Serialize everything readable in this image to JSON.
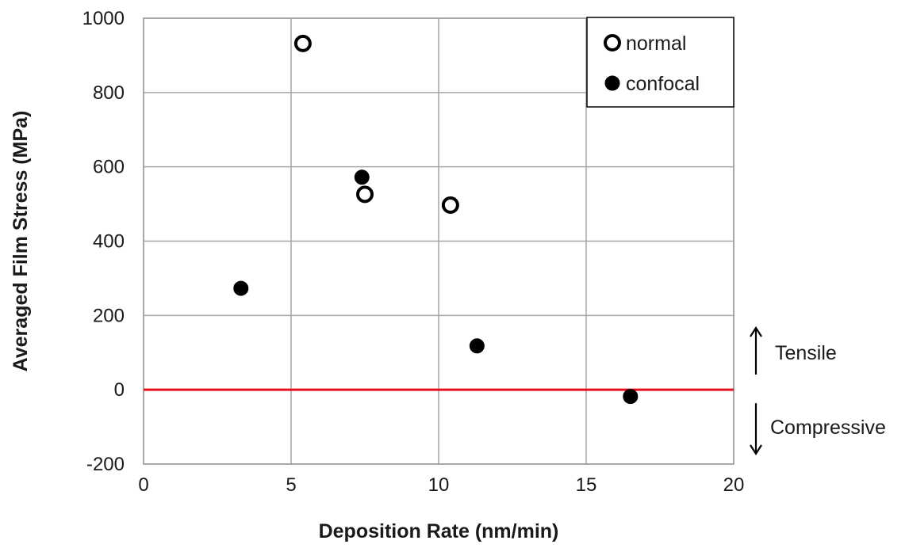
{
  "chart_data": {
    "type": "scatter",
    "title": "",
    "xlabel": "Deposition Rate (nm/min)",
    "ylabel": "Averaged Film Stress (MPa)",
    "xlim": [
      0,
      20
    ],
    "ylim": [
      -200,
      1000
    ],
    "xticks": [
      0,
      5,
      10,
      15,
      20
    ],
    "yticks": [
      -200,
      0,
      200,
      400,
      600,
      800,
      1000
    ],
    "grid": true,
    "legend_position": "top-right",
    "reference_line": {
      "y": 0,
      "color": "#e8101e"
    },
    "series": [
      {
        "name": "normal",
        "marker": "open-circle",
        "color": "#000000",
        "points": [
          {
            "x": 5.4,
            "y": 932
          },
          {
            "x": 7.5,
            "y": 526
          },
          {
            "x": 10.4,
            "y": 497
          }
        ]
      },
      {
        "name": "confocal",
        "marker": "filled-circle",
        "color": "#000000",
        "points": [
          {
            "x": 3.3,
            "y": 273
          },
          {
            "x": 7.4,
            "y": 572
          },
          {
            "x": 11.3,
            "y": 118
          },
          {
            "x": 16.5,
            "y": -18
          }
        ]
      }
    ],
    "annotations": [
      {
        "text": "Tensile",
        "direction": "up"
      },
      {
        "text": "Compressive",
        "direction": "down"
      }
    ]
  }
}
